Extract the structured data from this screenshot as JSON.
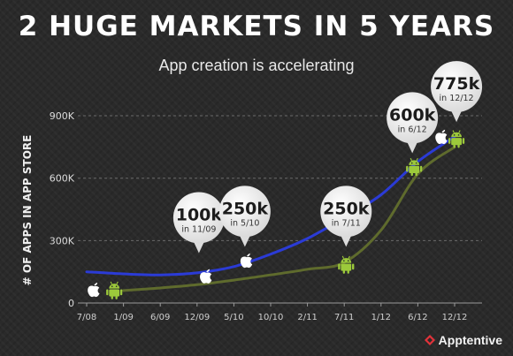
{
  "title": "2 HUGE MARKETS IN 5 YEARS",
  "subtitle": "App creation is accelerating",
  "brand": "Apptentive",
  "chart_data": {
    "type": "line",
    "ylabel": "# OF APPS IN APP STORE",
    "xlabel": "",
    "x_ticks": [
      "7/08",
      "1/09",
      "6/09",
      "12/09",
      "5/10",
      "10/10",
      "2/11",
      "7/11",
      "1/12",
      "6/12",
      "12/12"
    ],
    "y_ticks": [
      "0",
      "300K",
      "600K",
      "900K"
    ],
    "y_tick_values": [
      0,
      300,
      600,
      900
    ],
    "ylim": [
      0,
      950
    ],
    "grid": "horizontal dashed",
    "series": [
      {
        "icon": "apple-icon",
        "color": "#2b3bd6",
        "points": [
          [
            0,
            150
          ],
          [
            1,
            140
          ],
          [
            2,
            135
          ],
          [
            3,
            145
          ],
          [
            4,
            175
          ],
          [
            5,
            235
          ],
          [
            6,
            310
          ],
          [
            7,
            410
          ],
          [
            8,
            520
          ],
          [
            9,
            680
          ],
          [
            10,
            800
          ]
        ]
      },
      {
        "icon": "android-icon",
        "color": "#5f6b2d",
        "points": [
          [
            1,
            60
          ],
          [
            2,
            72
          ],
          [
            3,
            88
          ],
          [
            4,
            110
          ],
          [
            5,
            135
          ],
          [
            6,
            162
          ],
          [
            7,
            195
          ],
          [
            8,
            350
          ],
          [
            9,
            620
          ],
          [
            10,
            750
          ]
        ]
      }
    ],
    "markers": [
      {
        "icon": "apple-icon",
        "x": 0.2,
        "y": 65
      },
      {
        "icon": "android-icon",
        "x": 0.75,
        "y": 62
      },
      {
        "icon": "apple-icon",
        "x": 3.25,
        "y": 130
      },
      {
        "icon": "apple-icon",
        "x": 4.35,
        "y": 205
      },
      {
        "icon": "android-icon",
        "x": 7.05,
        "y": 185
      },
      {
        "icon": "android-icon",
        "x": 8.9,
        "y": 655
      },
      {
        "icon": "apple-icon",
        "x": 9.65,
        "y": 800
      },
      {
        "icon": "android-icon",
        "x": 10.05,
        "y": 790
      }
    ],
    "callouts": [
      {
        "value": "100k",
        "date": "in 11/09",
        "x": 3.05,
        "y": 410
      },
      {
        "value": "250k",
        "date": "in 5/10",
        "x": 4.3,
        "y": 440
      },
      {
        "value": "250k",
        "date": "in 7/11",
        "x": 7.05,
        "y": 440
      },
      {
        "value": "600k",
        "date": "in 6/12",
        "x": 8.85,
        "y": 890
      },
      {
        "value": "775k",
        "date": "in 12/12",
        "x": 10.05,
        "y": 1040
      }
    ]
  }
}
